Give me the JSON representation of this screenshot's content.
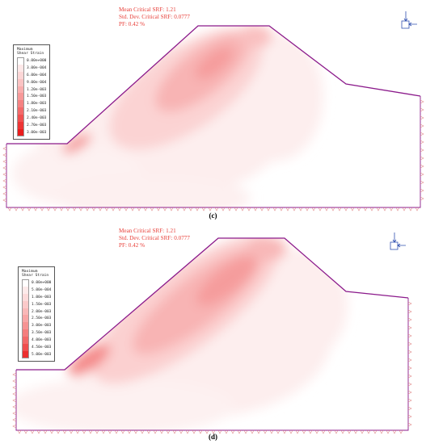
{
  "panels": [
    {
      "id": "c",
      "caption": "(c)",
      "stats": {
        "mean_srf": "Mean Critical SRF: 1.21",
        "std_dev": "Std. Dev. Critical SRF: 0.0777",
        "pf": "PF: 0.42 %"
      },
      "legend": {
        "title_line1": "Maximum",
        "title_line2": "Shear Strain",
        "entries": [
          {
            "label": "0.00e+000",
            "color": "#ffffff"
          },
          {
            "label": "3.00e-004",
            "color": "#fde8e8"
          },
          {
            "label": "6.00e-004",
            "color": "#fcd6d6"
          },
          {
            "label": "9.00e-004",
            "color": "#fbc3c3"
          },
          {
            "label": "1.20e-003",
            "color": "#f9aeae"
          },
          {
            "label": "1.50e-003",
            "color": "#f79999"
          },
          {
            "label": "1.80e-003",
            "color": "#f58282"
          },
          {
            "label": "2.10e-003",
            "color": "#f36a6a"
          },
          {
            "label": "2.40e-003",
            "color": "#f05050"
          },
          {
            "label": "2.70e-003",
            "color": "#ed3535"
          },
          {
            "label": "3.00e-003",
            "color": "#ea1d1d"
          }
        ]
      }
    },
    {
      "id": "d",
      "caption": "(d)",
      "stats": {
        "mean_srf": "Mean Critical SRF: 1.21",
        "std_dev": "Std. Dev. Critical SRF: 0.0777",
        "pf": "PF: 0.42 %"
      },
      "legend": {
        "title_line1": "Maximum",
        "title_line2": "Shear Strain",
        "entries": [
          {
            "label": "0.00e+000",
            "color": "#ffffff"
          },
          {
            "label": "5.00e-004",
            "color": "#fdeaea"
          },
          {
            "label": "1.00e-003",
            "color": "#fcdada"
          },
          {
            "label": "1.50e-003",
            "color": "#fbc9c9"
          },
          {
            "label": "2.00e-003",
            "color": "#f9b8b8"
          },
          {
            "label": "2.50e-003",
            "color": "#f8a6a6"
          },
          {
            "label": "3.00e-003",
            "color": "#f69393"
          },
          {
            "label": "3.50e-003",
            "color": "#f47e7e"
          },
          {
            "label": "4.00e-003",
            "color": "#f26868"
          },
          {
            "label": "4.50e-003",
            "color": "#ef4d4d"
          },
          {
            "label": "5.00e-003",
            "color": "#ec2f2f"
          }
        ]
      }
    }
  ],
  "colors": {
    "boundary": "#8b1a8b",
    "text_red": "#e8403a",
    "support": "#e08a8a"
  }
}
